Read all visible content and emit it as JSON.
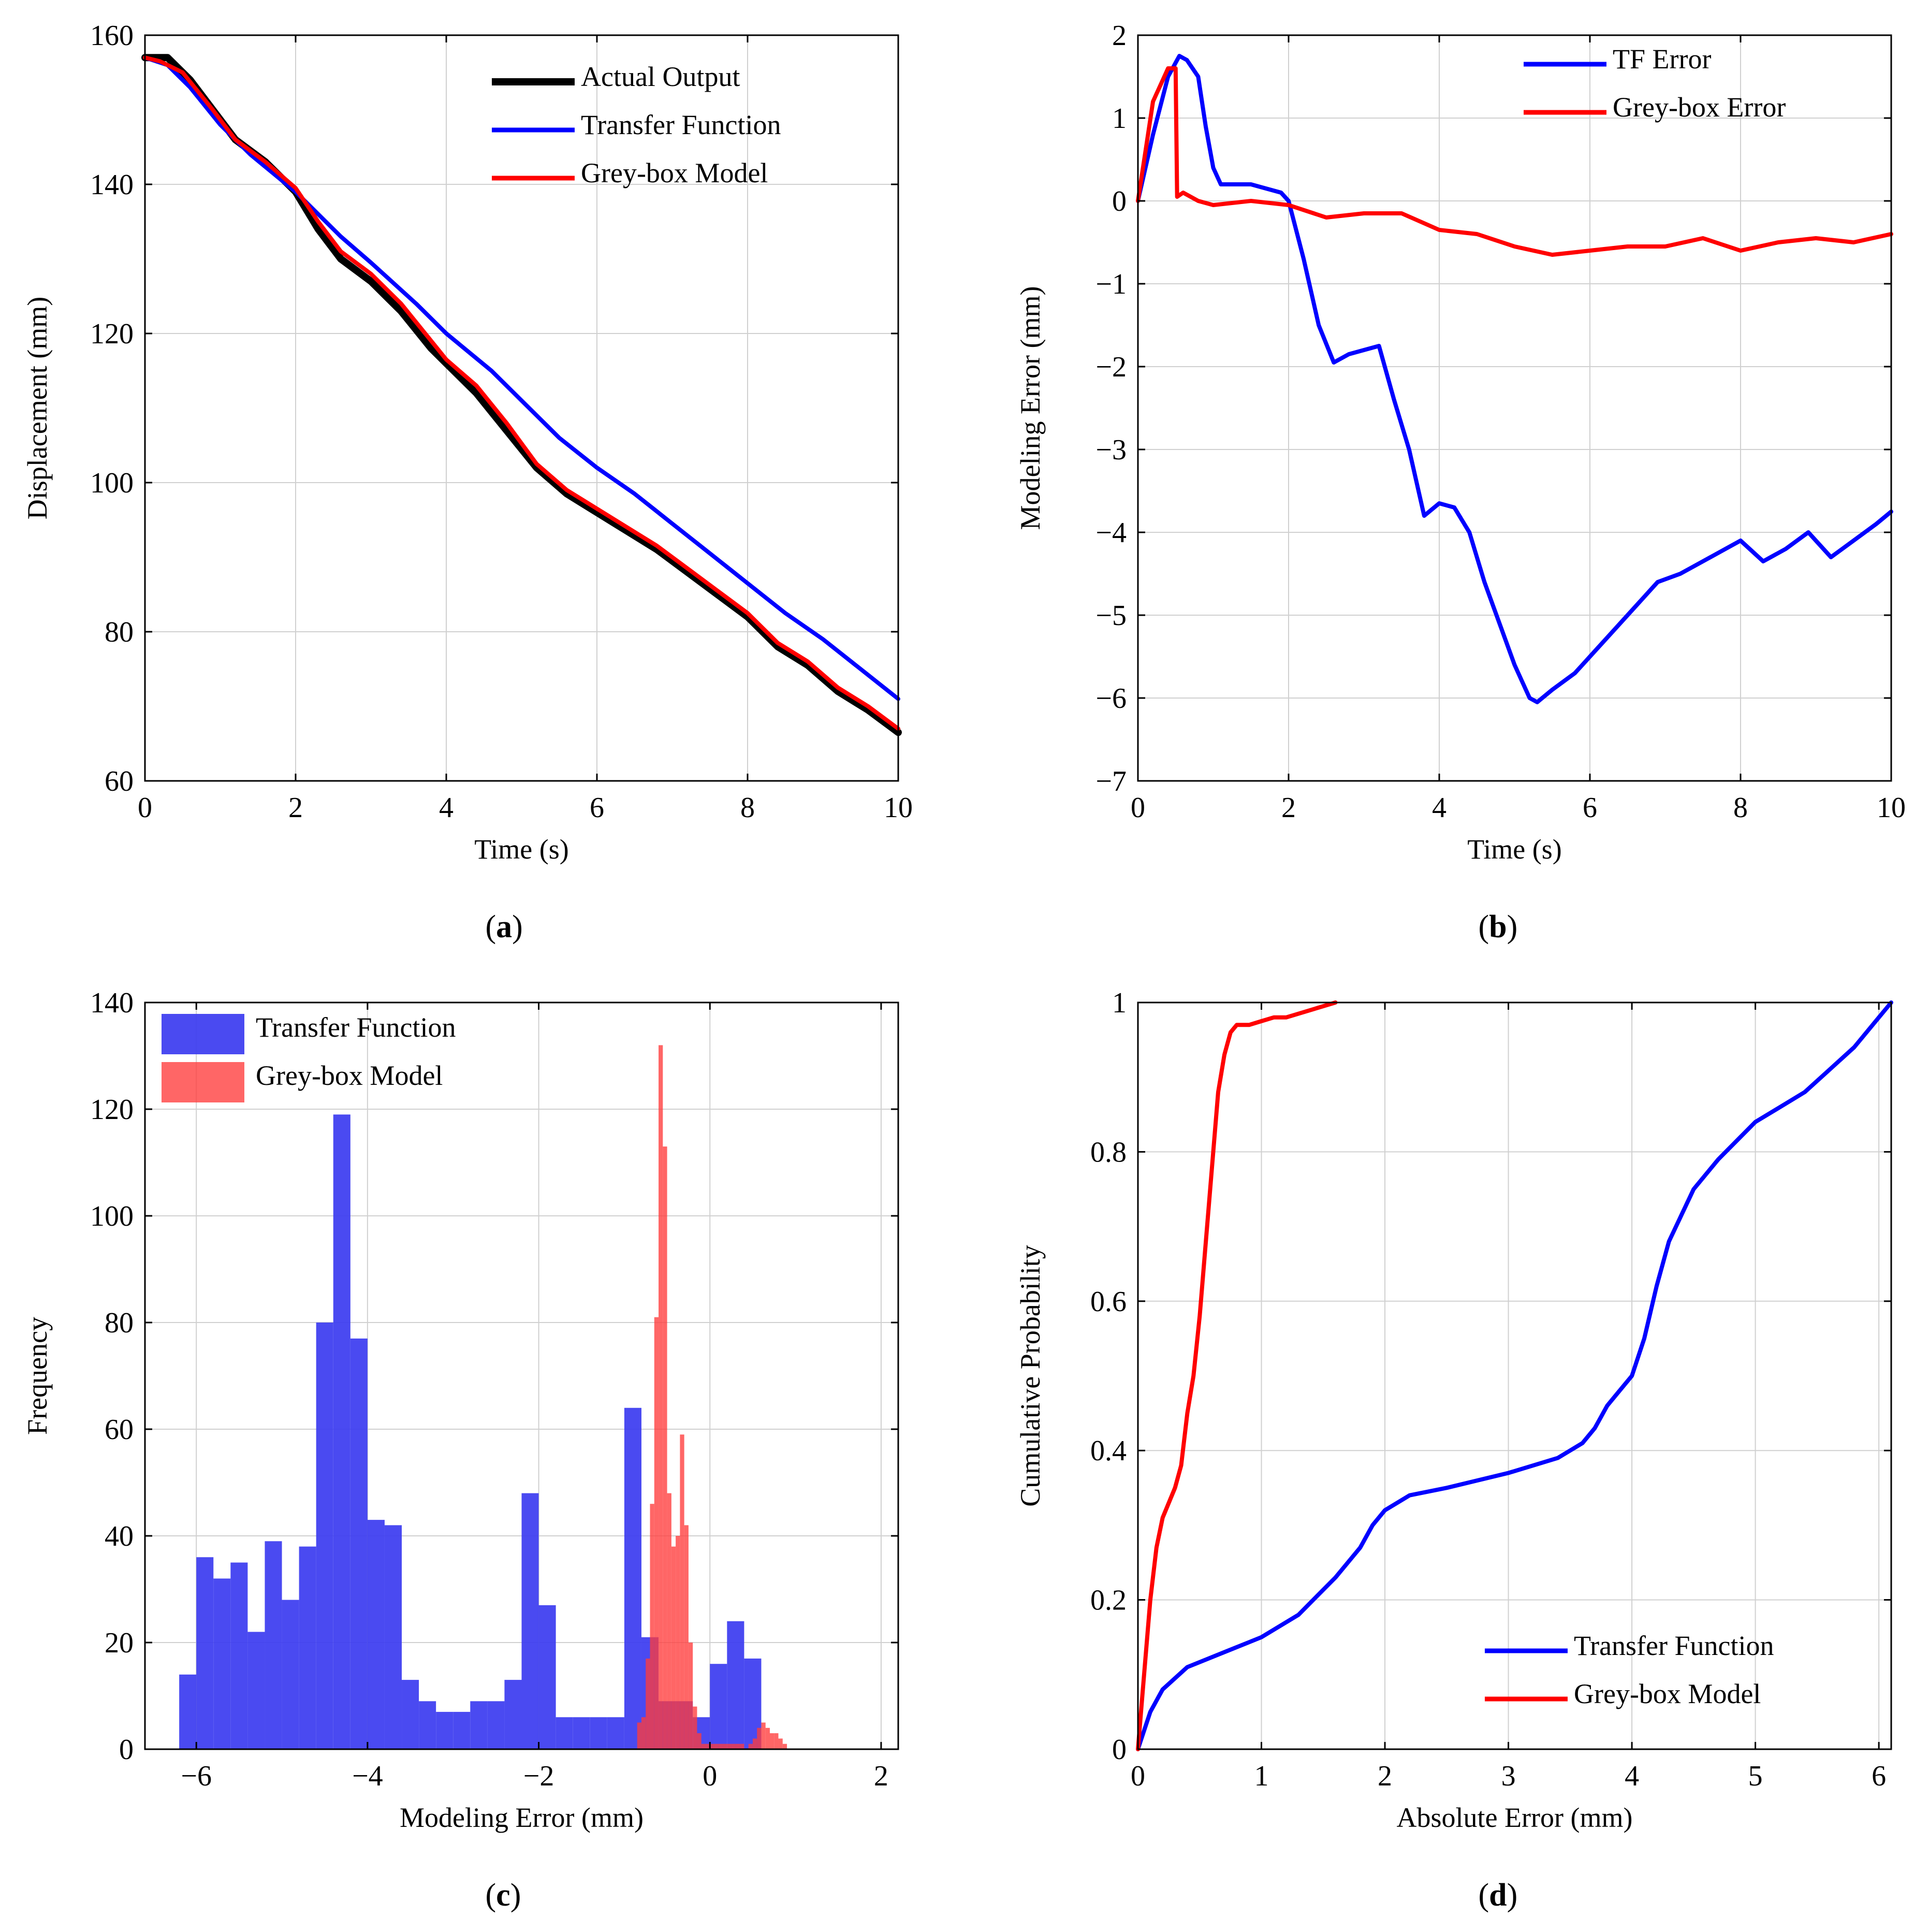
{
  "colors": {
    "black": "#000000",
    "blue": "#0000ff",
    "red": "#ff0000",
    "hist_blue": "#3b3bf0",
    "hist_red": "#ff3b3b",
    "overlap": "#c0143c",
    "grid": "#d0d0d0"
  },
  "chart_data": [
    {
      "id": "a",
      "type": "line",
      "caption": "a",
      "xlabel": "Time (s)",
      "ylabel": "Displacement (mm)",
      "xlim": [
        0,
        10
      ],
      "ylim": [
        60,
        160
      ],
      "xticks": [
        0,
        2,
        4,
        6,
        8,
        10
      ],
      "yticks": [
        60,
        80,
        100,
        120,
        140,
        160
      ],
      "grid": true,
      "legend": "top-right",
      "series": [
        {
          "name": "Actual Output",
          "color": "#000000",
          "x": [
            0,
            0.3,
            0.6,
            0.9,
            1.2,
            1.6,
            2.0,
            2.3,
            2.6,
            3.0,
            3.4,
            3.8,
            4.0,
            4.4,
            4.8,
            5.2,
            5.6,
            6.0,
            6.4,
            6.8,
            7.2,
            7.6,
            8.0,
            8.4,
            8.8,
            9.2,
            9.6,
            10.0
          ],
          "y": [
            157,
            157,
            154,
            150,
            146,
            143,
            139,
            134,
            130,
            127,
            123,
            118,
            116,
            112,
            107,
            102,
            98.5,
            96,
            93.5,
            91,
            88,
            85,
            82,
            78,
            75.5,
            72,
            69.5,
            66.5
          ]
        },
        {
          "name": "Transfer Function",
          "color": "#0000ff",
          "x": [
            0,
            0.3,
            0.6,
            1.0,
            1.4,
            2.0,
            2.6,
            3.0,
            3.6,
            4.0,
            4.6,
            5.0,
            5.5,
            6.0,
            6.5,
            7.0,
            7.5,
            8.0,
            8.5,
            9.0,
            9.5,
            10.0
          ],
          "y": [
            157,
            156,
            153,
            148,
            144,
            139,
            133,
            129.5,
            124,
            120,
            115,
            111,
            106,
            102,
            98.5,
            94.5,
            90.5,
            86.5,
            82.5,
            79,
            75,
            71
          ]
        },
        {
          "name": "Grey-box Model",
          "color": "#ff0000",
          "x": [
            0,
            0.2,
            0.5,
            0.9,
            1.2,
            1.6,
            2.0,
            2.3,
            2.6,
            3.0,
            3.4,
            3.8,
            4.0,
            4.4,
            4.8,
            5.2,
            5.6,
            6.0,
            6.4,
            6.8,
            7.2,
            7.6,
            8.0,
            8.4,
            8.8,
            9.2,
            9.6,
            10.0
          ],
          "y": [
            157,
            156.5,
            155,
            150,
            146,
            143,
            139.5,
            135,
            131,
            128,
            124,
            119,
            116.5,
            113,
            108,
            102.5,
            99,
            96.5,
            94,
            91.5,
            88.5,
            85.5,
            82.5,
            78.5,
            76,
            72.5,
            70,
            67
          ]
        }
      ]
    },
    {
      "id": "b",
      "type": "line",
      "caption": "b",
      "xlabel": "Time (s)",
      "ylabel": "Modeling Error (mm)",
      "xlim": [
        0,
        10
      ],
      "ylim": [
        -7,
        2
      ],
      "xticks": [
        0,
        2,
        4,
        6,
        8,
        10
      ],
      "yticks": [
        -7,
        -6,
        -5,
        -4,
        -3,
        -2,
        -1,
        0,
        1,
        2
      ],
      "ytick_labels": [
        "−7",
        "−6",
        "−5",
        "−4",
        "−3",
        "−2",
        "−1",
        "0",
        "1",
        "2"
      ],
      "grid": true,
      "legend": "top-right",
      "series": [
        {
          "name": "TF Error",
          "color": "#0000ff",
          "x": [
            0,
            0.2,
            0.4,
            0.55,
            0.65,
            0.8,
            0.9,
            1.0,
            1.1,
            1.3,
            1.5,
            1.7,
            1.9,
            2.0,
            2.2,
            2.4,
            2.6,
            2.8,
            3.0,
            3.2,
            3.4,
            3.6,
            3.8,
            4.0,
            4.2,
            4.4,
            4.6,
            4.8,
            5.0,
            5.2,
            5.3,
            5.5,
            5.8,
            6.0,
            6.3,
            6.6,
            6.9,
            7.2,
            7.5,
            7.8,
            8.0,
            8.3,
            8.6,
            8.9,
            9.2,
            9.5,
            9.8,
            10.0
          ],
          "y": [
            0,
            0.8,
            1.5,
            1.75,
            1.7,
            1.5,
            0.9,
            0.4,
            0.2,
            0.2,
            0.2,
            0.15,
            0.1,
            0.0,
            -0.7,
            -1.5,
            -1.95,
            -1.85,
            -1.8,
            -1.75,
            -2.4,
            -3.0,
            -3.8,
            -3.65,
            -3.7,
            -4.0,
            -4.6,
            -5.1,
            -5.6,
            -6.0,
            -6.05,
            -5.9,
            -5.7,
            -5.5,
            -5.2,
            -4.9,
            -4.6,
            -4.5,
            -4.35,
            -4.2,
            -4.1,
            -4.35,
            -4.2,
            -4.0,
            -4.3,
            -4.1,
            -3.9,
            -3.75
          ]
        },
        {
          "name": "Grey-box Error",
          "color": "#ff0000",
          "x": [
            0,
            0.1,
            0.2,
            0.3,
            0.4,
            0.5,
            0.52,
            0.6,
            0.8,
            1.0,
            1.5,
            2.0,
            2.5,
            3.0,
            3.5,
            4.0,
            4.5,
            5.0,
            5.5,
            6.0,
            6.5,
            7.0,
            7.5,
            8.0,
            8.5,
            9.0,
            9.5,
            10.0
          ],
          "y": [
            0,
            0.6,
            1.2,
            1.4,
            1.6,
            1.6,
            0.05,
            0.1,
            0.0,
            -0.05,
            0.0,
            -0.05,
            -0.2,
            -0.15,
            -0.15,
            -0.35,
            -0.4,
            -0.55,
            -0.65,
            -0.6,
            -0.55,
            -0.55,
            -0.45,
            -0.6,
            -0.5,
            -0.45,
            -0.5,
            -0.4
          ]
        }
      ]
    },
    {
      "id": "c",
      "type": "bar",
      "caption": "c",
      "xlabel": "Modeling Error (mm)",
      "ylabel": "Frequency",
      "xlim": [
        -6.6,
        2.2
      ],
      "ylim": [
        0,
        140
      ],
      "xticks": [
        -6,
        -4,
        -2,
        0,
        2
      ],
      "xtick_labels": [
        "−6",
        "−4",
        "−2",
        "0",
        "2"
      ],
      "yticks": [
        0,
        20,
        40,
        60,
        80,
        100,
        120,
        140
      ],
      "grid": true,
      "legend": "top-left",
      "series": [
        {
          "name": "Transfer Function",
          "color": "#3b3bf0",
          "bin_start": -6.2,
          "bin_width": 0.2,
          "values": [
            14,
            36,
            32,
            35,
            22,
            39,
            28,
            38,
            80,
            119,
            77,
            43,
            42,
            13,
            9,
            7,
            7,
            9,
            9,
            13,
            48,
            27,
            6,
            6,
            6,
            6,
            64,
            21,
            9,
            9,
            6,
            16,
            24,
            17
          ]
        },
        {
          "name": "Grey-box Model",
          "color": "#ff3b3b",
          "bin_start": -0.85,
          "bin_width": 0.05,
          "values": [
            5,
            6,
            17,
            46,
            81,
            132,
            113,
            48,
            38,
            40,
            59,
            42,
            20,
            8,
            3,
            1,
            1,
            1,
            1,
            1,
            1,
            1,
            1,
            1,
            1,
            0,
            1,
            2,
            4,
            5,
            4,
            3,
            3,
            2,
            1
          ]
        }
      ]
    },
    {
      "id": "d",
      "type": "line",
      "caption": "d",
      "xlabel": "Absolute Error (mm)",
      "ylabel": "Cumulative Probability",
      "xlim": [
        0,
        6.1
      ],
      "ylim": [
        0,
        1
      ],
      "xticks": [
        0,
        1,
        2,
        3,
        4,
        5,
        6
      ],
      "yticks": [
        0,
        0.2,
        0.4,
        0.6,
        0.8,
        1
      ],
      "ytick_labels": [
        "0",
        "0.2",
        "0.4",
        "0.6",
        "0.8",
        "1"
      ],
      "grid": true,
      "legend": "bottom-right",
      "series": [
        {
          "name": "Transfer Function",
          "color": "#0000ff",
          "x": [
            0,
            0.1,
            0.2,
            0.4,
            0.7,
            1.0,
            1.3,
            1.6,
            1.8,
            1.9,
            2.0,
            2.2,
            2.5,
            3.0,
            3.4,
            3.6,
            3.7,
            3.8,
            3.9,
            4.0,
            4.1,
            4.2,
            4.3,
            4.5,
            4.7,
            5.0,
            5.2,
            5.4,
            5.6,
            5.8,
            6.0,
            6.1
          ],
          "y": [
            0,
            0.05,
            0.08,
            0.11,
            0.13,
            0.15,
            0.18,
            0.23,
            0.27,
            0.3,
            0.32,
            0.34,
            0.35,
            0.37,
            0.39,
            0.41,
            0.43,
            0.46,
            0.48,
            0.5,
            0.55,
            0.62,
            0.68,
            0.75,
            0.79,
            0.84,
            0.86,
            0.88,
            0.91,
            0.94,
            0.98,
            1.0
          ]
        },
        {
          "name": "Grey-box Model",
          "color": "#ff0000",
          "x": [
            0,
            0.05,
            0.1,
            0.15,
            0.2,
            0.3,
            0.35,
            0.4,
            0.45,
            0.5,
            0.55,
            0.6,
            0.65,
            0.7,
            0.75,
            0.8,
            0.9,
            1.0,
            1.1,
            1.2,
            1.4,
            1.6
          ],
          "y": [
            0,
            0.1,
            0.2,
            0.27,
            0.31,
            0.35,
            0.38,
            0.45,
            0.5,
            0.58,
            0.68,
            0.78,
            0.88,
            0.93,
            0.96,
            0.97,
            0.97,
            0.975,
            0.98,
            0.98,
            0.99,
            1.0
          ]
        }
      ]
    }
  ]
}
